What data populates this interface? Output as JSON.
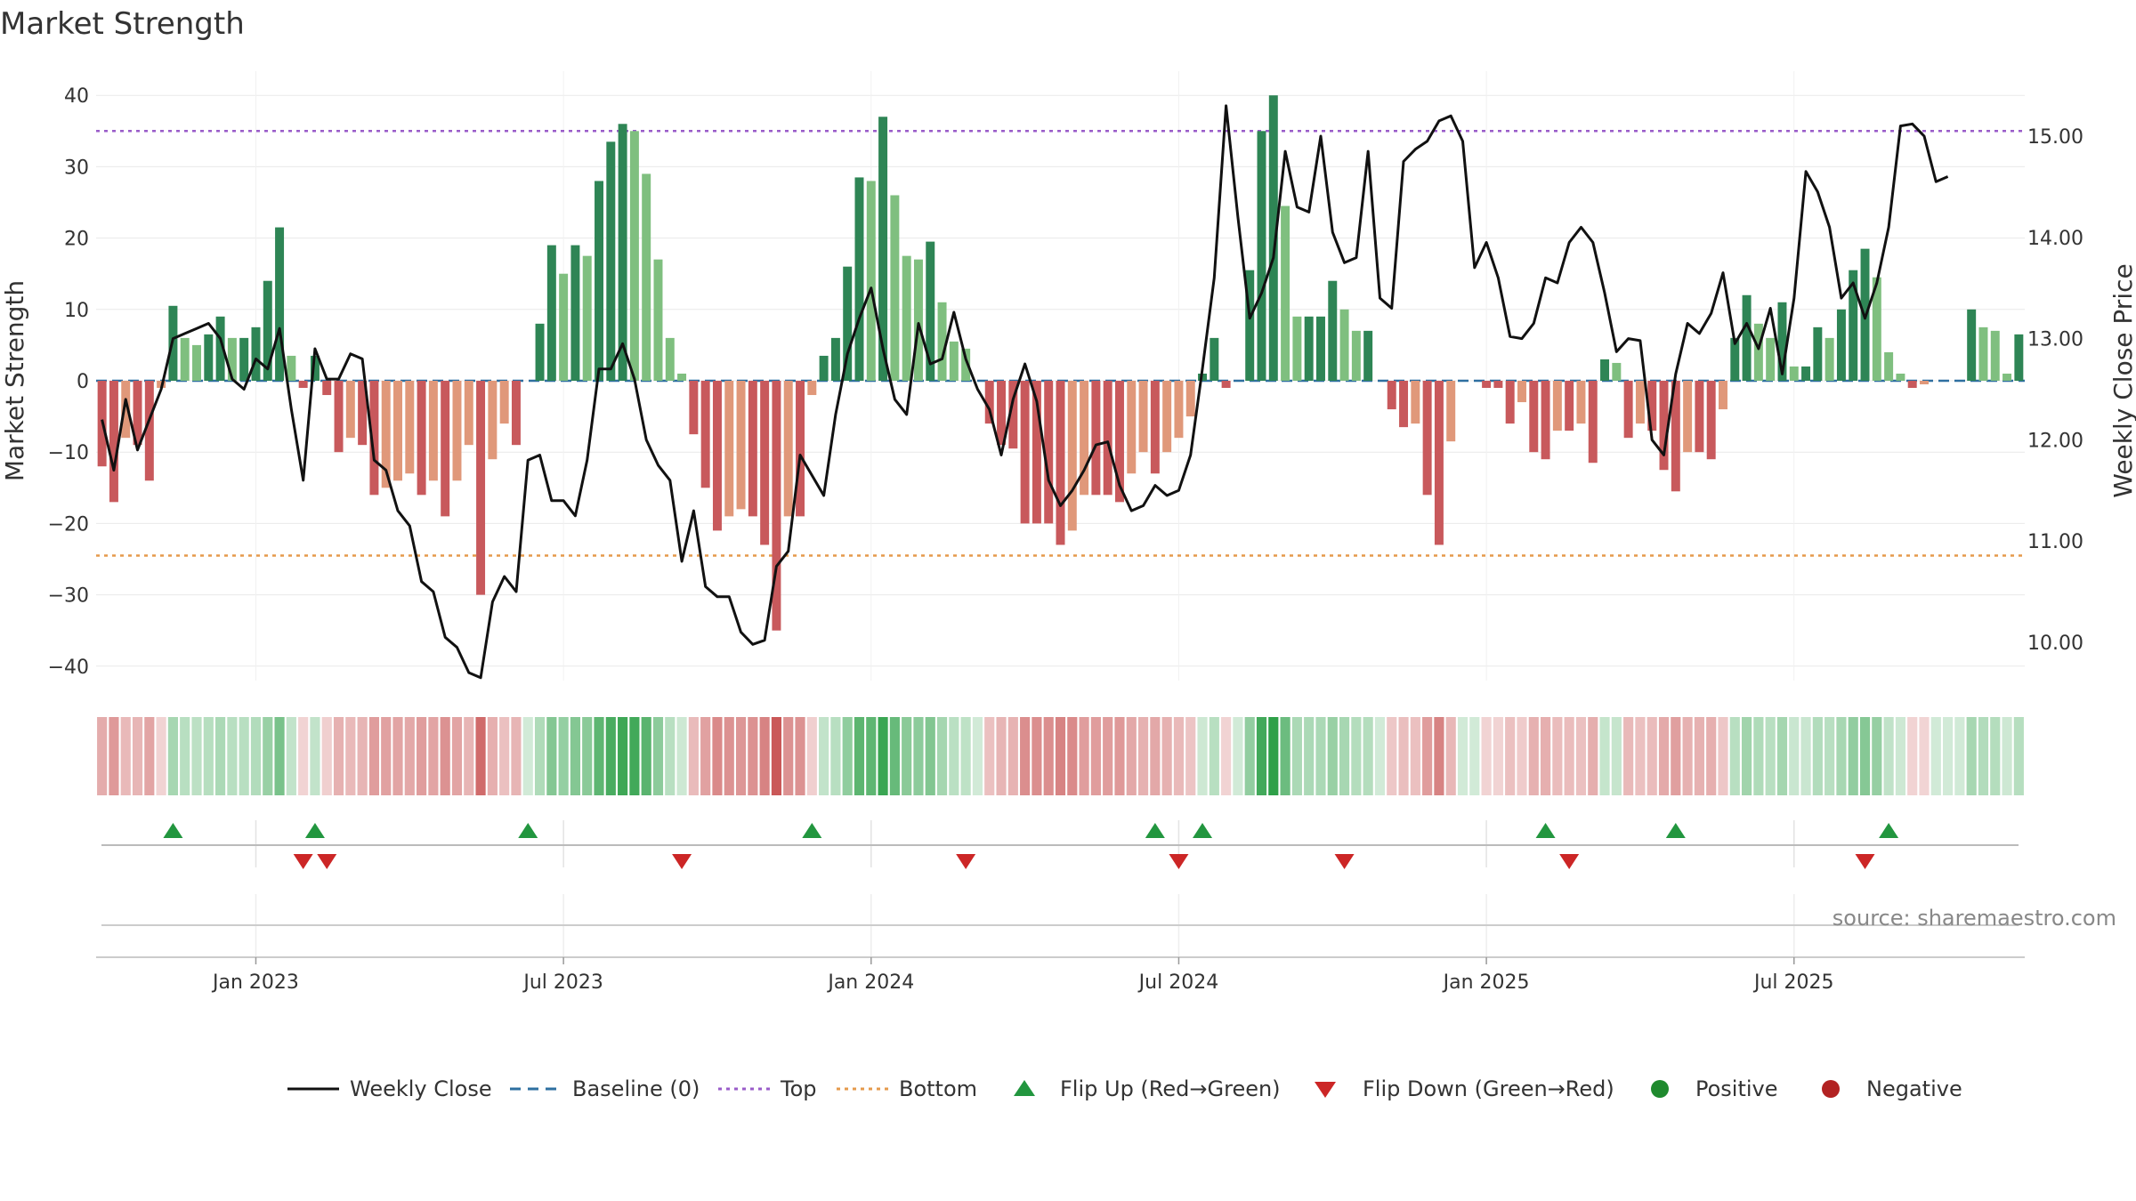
{
  "chart_data": {
    "type": "bar+line",
    "title": "Market Strength",
    "ylabel_left": "Market Strength",
    "ylabel_right": "Weekly Close Price",
    "ylim_left": [
      -45,
      45
    ],
    "ylim_right": [
      9.5,
      15.5
    ],
    "yticks_left": [
      40,
      30,
      20,
      10,
      0,
      -10,
      -20,
      -30,
      -40
    ],
    "yticks_left_labels": [
      "40",
      "30",
      "20",
      "10",
      "0",
      "−10",
      "−20",
      "−30",
      "−40"
    ],
    "yticks_right": [
      15.0,
      14.0,
      13.0,
      12.0,
      11.0,
      10.0
    ],
    "yticks_right_labels": [
      "15.00",
      "14.00",
      "13.00",
      "12.00",
      "11.00",
      "10.00"
    ],
    "x_start": "2022-10-03",
    "x_end": "2025-10-13",
    "xtick_labels": [
      "Jan 2023",
      "Jul 2023",
      "Jan 2024",
      "Jul 2024",
      "Jan 2025",
      "Jul 2025"
    ],
    "xtick_weeks": [
      13,
      39,
      65,
      91,
      117,
      143
    ],
    "top_level": 35,
    "bottom_level": -24.5,
    "baseline": 0,
    "strength": [
      -12,
      -17,
      -8,
      -9,
      -14,
      -1,
      10.5,
      6,
      5,
      6.5,
      9,
      6,
      6,
      7.5,
      14,
      21.5,
      3.5,
      -1,
      3.5,
      -2,
      -10,
      -8,
      -9,
      -16,
      -15,
      -14,
      -13,
      -16,
      -14,
      -19,
      -14,
      -9,
      -30,
      -11,
      -6,
      -9,
      0,
      8,
      19,
      15,
      19,
      17.5,
      28,
      33.5,
      36,
      35,
      29,
      17,
      6,
      1,
      -7.5,
      -15,
      -21,
      -19,
      -18,
      -19,
      -23,
      -35,
      -19,
      -19,
      -2,
      3.5,
      6,
      16,
      28.5,
      28,
      37,
      26,
      17.5,
      17,
      19.5,
      11,
      5.5,
      4.5,
      0,
      -6,
      -9,
      -9.5,
      -20,
      -20,
      -20,
      -23,
      -21,
      -16,
      -16,
      -16,
      -17,
      -13,
      -10,
      -13,
      -10,
      -8,
      -5,
      1,
      6,
      -1,
      0,
      15.5,
      35,
      40,
      24.5,
      9,
      9,
      9,
      14,
      10,
      7,
      7,
      0,
      -4,
      -6.5,
      -6,
      -16,
      -23,
      -8.5,
      0,
      0,
      -1,
      -1,
      -6,
      -3,
      -10,
      -11,
      -7,
      -7,
      -6,
      -11.5,
      3,
      2.5,
      -8,
      -6,
      -7,
      -12.5,
      -15.5,
      -10,
      -10,
      -11,
      -4,
      6,
      12,
      8,
      6,
      11,
      2,
      2,
      7.5,
      6,
      10,
      15.5,
      18.5,
      14.5,
      4,
      1,
      -1,
      -0.5,
      0,
      0,
      0,
      10,
      7.5,
      7,
      1,
      6.5
    ],
    "close": [
      12.2,
      11.7,
      12.4,
      11.9,
      12.2,
      12.5,
      13.0,
      13.05,
      13.1,
      13.15,
      13.0,
      12.6,
      12.5,
      12.8,
      12.7,
      13.1,
      12.3,
      11.6,
      12.9,
      12.6,
      12.6,
      12.85,
      12.8,
      11.8,
      11.7,
      11.3,
      11.15,
      10.6,
      10.5,
      10.05,
      9.95,
      9.7,
      9.65,
      10.4,
      10.65,
      10.5,
      11.8,
      11.85,
      11.4,
      11.4,
      11.25,
      11.8,
      12.7,
      12.7,
      12.95,
      12.6,
      12.0,
      11.75,
      11.6,
      10.8,
      11.3,
      10.55,
      10.45,
      10.45,
      10.1,
      9.98,
      10.02,
      10.75,
      10.9,
      11.85,
      11.65,
      11.45,
      12.25,
      12.85,
      13.2,
      13.5,
      12.9,
      12.4,
      12.25,
      13.15,
      12.75,
      12.8,
      13.26,
      12.8,
      12.5,
      12.3,
      11.85,
      12.4,
      12.75,
      12.38,
      11.6,
      11.35,
      11.5,
      11.7,
      11.95,
      11.98,
      11.55,
      11.3,
      11.35,
      11.55,
      11.45,
      11.5,
      11.85,
      12.7,
      13.6,
      15.3,
      14.2,
      13.2,
      13.45,
      13.8,
      14.85,
      14.3,
      14.25,
      15.0,
      14.05,
      13.75,
      13.8,
      14.85,
      13.4,
      13.3,
      14.75,
      14.87,
      14.95,
      15.15,
      15.2,
      14.95,
      13.7,
      13.95,
      13.6,
      13.02,
      13.0,
      13.15,
      13.6,
      13.55,
      13.95,
      14.1,
      13.95,
      13.45,
      12.87,
      13.0,
      12.98,
      12.0,
      11.85,
      12.65,
      13.15,
      13.05,
      13.25,
      13.65,
      12.95,
      13.15,
      12.9,
      13.3,
      12.65,
      13.4,
      14.65,
      14.45,
      14.1,
      13.4,
      13.55,
      13.2,
      13.55,
      14.1,
      15.1,
      15.12,
      15.0,
      14.55,
      14.6
    ],
    "flips_up": [
      6,
      18,
      36,
      60,
      89,
      93,
      122,
      133,
      151
    ],
    "flips_down": [
      17,
      19,
      49,
      73,
      91,
      105,
      124,
      149
    ],
    "legend": [
      "Weekly Close",
      "Baseline (0)",
      "Top",
      "Bottom",
      "Flip Up (Red→Green)",
      "Flip Down (Green→Red)",
      "Positive",
      "Negative"
    ]
  },
  "colors": {
    "pos_strong": "#2e8555",
    "pos_light": "#7fbf7f",
    "neg_strong": "#c8595c",
    "neg_light": "#e0987a",
    "line": "#111111",
    "baseline": "#2e6fa0",
    "top": "#9a5cc9",
    "bottom": "#e59a4c",
    "flip_up": "#22963f",
    "flip_down": "#cc2626",
    "legend_positive": "#1f8a2e",
    "legend_negative": "#b22222"
  },
  "source": "source: sharemaestro.com"
}
